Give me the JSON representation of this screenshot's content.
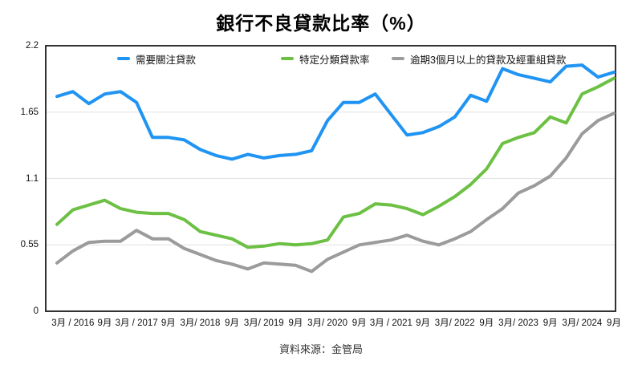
{
  "title": "銀行不良貸款比率（%）",
  "source": "資料來源：金管局",
  "legend": [
    {
      "label": "需要關注貸款",
      "color": "#2094f3"
    },
    {
      "label": "特定分類貸款率",
      "color": "#6cc043"
    },
    {
      "label": "逾期3個月以上的貸款及經重組貸款",
      "color": "#9b9b9b"
    }
  ],
  "chart_data": {
    "type": "line",
    "title": "銀行不良貸款比率（%）",
    "ylabel": "",
    "xlabel": "",
    "ylim": [
      0,
      2.2
    ],
    "y_ticks": [
      0,
      0.55,
      1.1,
      1.65,
      2.2
    ],
    "grid": "horizontal",
    "legend_position": "top",
    "x_period": "quarterly",
    "x": [
      "2015-12",
      "2016-03",
      "2016-06",
      "2016-09",
      "2016-12",
      "2017-03",
      "2017-06",
      "2017-09",
      "2017-12",
      "2018-03",
      "2018-06",
      "2018-09",
      "2018-12",
      "2019-03",
      "2019-06",
      "2019-09",
      "2019-12",
      "2020-03",
      "2020-06",
      "2020-09",
      "2020-12",
      "2021-03",
      "2021-06",
      "2021-09",
      "2021-12",
      "2022-03",
      "2022-06",
      "2022-09",
      "2022-12",
      "2023-03",
      "2023-06",
      "2023-09",
      "2023-12",
      "2024-03",
      "2024-06",
      "2024-09"
    ],
    "x_labels": [
      "3月 / 2016",
      "9月",
      "3月 / 2017",
      "9月",
      "3月/ 2018",
      "9月",
      "3月/ 2019",
      "9月",
      "3月/ 2020",
      "9月",
      "3月 / 2021",
      "9月",
      "3月/ 2022",
      "9月",
      "3月/ 2023",
      "9月",
      "3月/ 2024",
      "9月"
    ],
    "series": [
      {
        "name": "需要關注貸款",
        "color": "#2094f3",
        "values": [
          1.78,
          1.82,
          1.72,
          1.8,
          1.82,
          1.73,
          1.44,
          1.44,
          1.42,
          1.34,
          1.29,
          1.26,
          1.3,
          1.27,
          1.29,
          1.3,
          1.33,
          1.58,
          1.73,
          1.73,
          1.8,
          1.63,
          1.46,
          1.48,
          1.53,
          1.61,
          1.79,
          1.74,
          2.01,
          1.96,
          1.93,
          1.9,
          2.03,
          2.04,
          1.94,
          1.98
        ]
      },
      {
        "name": "特定分類貸款率",
        "color": "#6cc043",
        "values": [
          0.72,
          0.84,
          0.88,
          0.92,
          0.85,
          0.82,
          0.81,
          0.81,
          0.76,
          0.66,
          0.63,
          0.6,
          0.53,
          0.54,
          0.56,
          0.55,
          0.56,
          0.59,
          0.78,
          0.81,
          0.89,
          0.88,
          0.85,
          0.8,
          0.87,
          0.95,
          1.05,
          1.18,
          1.39,
          1.44,
          1.48,
          1.61,
          1.56,
          1.8,
          1.86,
          1.93
        ]
      },
      {
        "name": "逾期3個月以上的貸款及經重組貸款",
        "color": "#9b9b9b",
        "values": [
          0.4,
          0.5,
          0.57,
          0.58,
          0.58,
          0.67,
          0.6,
          0.6,
          0.52,
          0.47,
          0.42,
          0.39,
          0.35,
          0.4,
          0.39,
          0.38,
          0.33,
          0.43,
          0.49,
          0.55,
          0.57,
          0.59,
          0.63,
          0.58,
          0.55,
          0.6,
          0.66,
          0.76,
          0.85,
          0.98,
          1.04,
          1.12,
          1.27,
          1.47,
          1.58,
          1.64
        ]
      }
    ]
  },
  "colors": {
    "axis_border": "#1c1c1c",
    "gridline": "#e6e6e6",
    "background": "#ffffff"
  }
}
